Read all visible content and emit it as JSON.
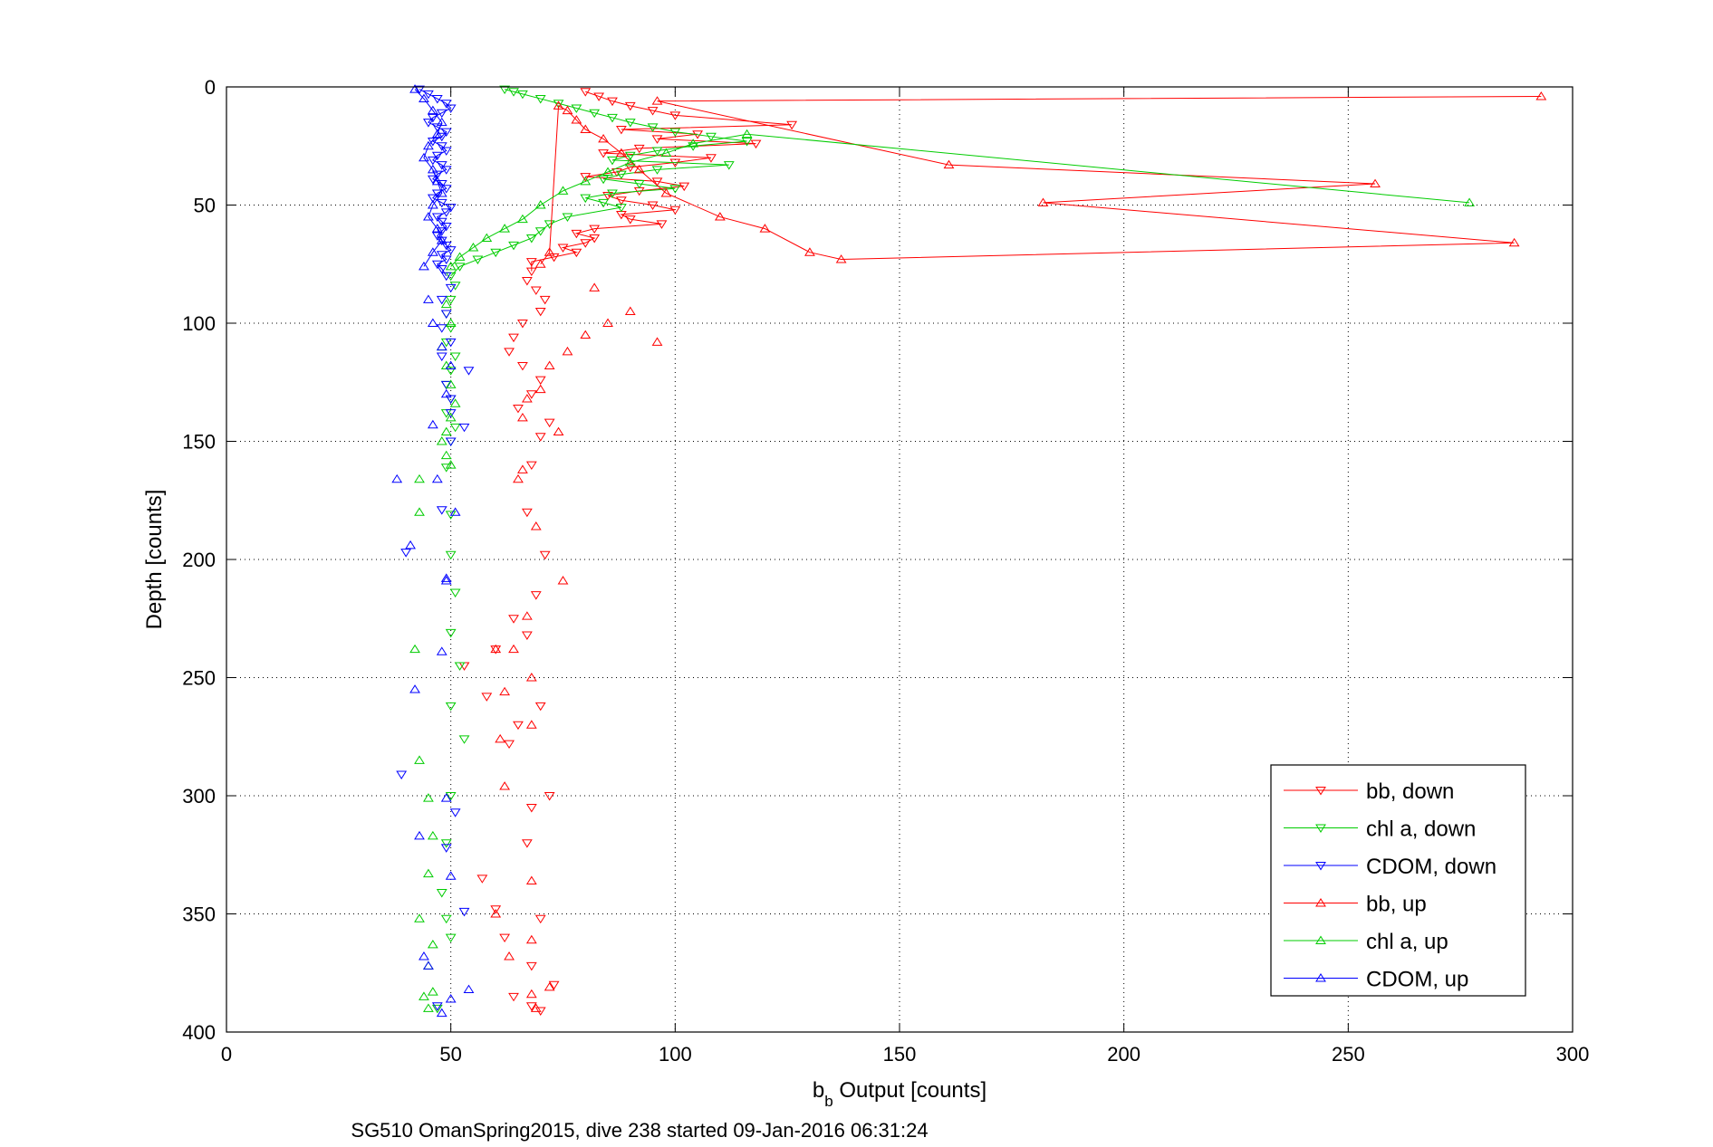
{
  "chart_data": {
    "type": "scatter",
    "title": "",
    "xlabel_main": "b",
    "xlabel_sub": "b",
    "xlabel_rest": " Output [counts]",
    "ylabel": "Depth [counts]",
    "caption": "SG510 OmanSpring2015, dive 238 started 09-Jan-2016 06:31:24",
    "xlim": [
      0,
      300
    ],
    "ylim": [
      0,
      400
    ],
    "y_reversed": true,
    "grid": true,
    "grid_style": "dotted",
    "legend_position": "lower-right",
    "x_ticks": [
      0,
      50,
      100,
      150,
      200,
      250,
      300
    ],
    "x_tick_labels": [
      "0",
      "50",
      "100",
      "150",
      "200",
      "250",
      "300"
    ],
    "y_ticks": [
      0,
      50,
      100,
      150,
      200,
      250,
      300,
      350,
      400
    ],
    "y_tick_labels": [
      "0",
      "50",
      "100",
      "150",
      "200",
      "250",
      "300",
      "350",
      "400"
    ],
    "series": [
      {
        "name": "bb, down",
        "color": "#ff0000",
        "marker": "triangle-down",
        "x": [
          80,
          83,
          86,
          90,
          95,
          100,
          126,
          88,
          105,
          96,
          118,
          92,
          84,
          108,
          100,
          90,
          87,
          80,
          96,
          102,
          92,
          85,
          88,
          95,
          100,
          88,
          90,
          97,
          82,
          78,
          82,
          80,
          75,
          78,
          73,
          68,
          68,
          67,
          69,
          71,
          70,
          66,
          64,
          63,
          66,
          70,
          68,
          65,
          72,
          70,
          68,
          67,
          71,
          69,
          64,
          67,
          60,
          53,
          58,
          70,
          65,
          63,
          72,
          68,
          67,
          57,
          60,
          70,
          62,
          68,
          73,
          64,
          68,
          70
        ],
        "y": [
          2,
          4,
          6,
          8,
          10,
          12,
          16,
          18,
          20,
          22,
          24,
          26,
          28,
          30,
          32,
          34,
          36,
          38,
          40,
          42,
          44,
          46,
          48,
          50,
          52,
          54,
          56,
          58,
          60,
          62,
          64,
          66,
          68,
          70,
          72,
          74,
          78,
          82,
          86,
          90,
          95,
          100,
          106,
          112,
          118,
          124,
          130,
          136,
          142,
          148,
          160,
          180,
          198,
          215,
          225,
          232,
          238,
          245,
          258,
          262,
          270,
          278,
          300,
          305,
          320,
          335,
          348,
          352,
          360,
          372,
          380,
          385,
          389,
          391
        ],
        "connect_to": 78
      },
      {
        "name": "chl a, down",
        "color": "#00cc00",
        "marker": "triangle-down",
        "x": [
          62,
          64,
          66,
          70,
          74,
          78,
          82,
          86,
          90,
          95,
          100,
          108,
          116,
          104,
          96,
          90,
          86,
          112,
          96,
          88,
          84,
          92,
          100,
          86,
          80,
          84,
          88,
          76,
          72,
          70,
          68,
          64,
          60,
          56,
          52,
          50,
          51,
          50,
          49,
          50,
          49,
          51,
          50,
          49,
          50,
          49,
          51,
          50,
          49,
          50,
          50,
          51,
          50,
          52,
          50,
          53,
          50,
          49,
          48,
          49,
          50,
          47
        ],
        "y": [
          1,
          2,
          3,
          5,
          7,
          9,
          11,
          13,
          15,
          17,
          19,
          21,
          23,
          25,
          27,
          29,
          31,
          33,
          35,
          37,
          39,
          41,
          43,
          45,
          47,
          49,
          51,
          55,
          58,
          61,
          64,
          67,
          70,
          73,
          76,
          80,
          84,
          90,
          96,
          102,
          108,
          114,
          120,
          126,
          132,
          138,
          144,
          150,
          161,
          181,
          198,
          214,
          231,
          245,
          262,
          276,
          300,
          320,
          341,
          352,
          360,
          390
        ],
        "connect_to": 80
      },
      {
        "name": "CDOM, down",
        "color": "#0000ff",
        "marker": "triangle-down",
        "x": [
          43,
          45,
          47,
          49,
          50,
          48,
          46,
          45,
          47,
          49,
          48,
          46,
          48,
          49,
          47,
          46,
          48,
          49,
          47,
          46,
          48,
          49,
          47,
          46,
          48,
          50,
          49,
          47,
          48,
          49,
          48,
          47,
          48,
          49,
          50,
          48,
          49,
          47,
          48,
          49,
          50,
          48,
          49,
          48,
          50,
          48,
          54,
          49,
          50,
          50,
          53,
          50,
          48,
          40,
          39,
          51,
          49,
          53,
          47
        ],
        "y": [
          1,
          3,
          5,
          7,
          9,
          11,
          13,
          15,
          17,
          19,
          21,
          23,
          25,
          27,
          29,
          31,
          33,
          35,
          37,
          39,
          41,
          43,
          45,
          47,
          49,
          51,
          53,
          55,
          57,
          59,
          61,
          63,
          65,
          67,
          69,
          71,
          73,
          75,
          77,
          80,
          85,
          90,
          96,
          102,
          108,
          114,
          120,
          126,
          132,
          138,
          144,
          150,
          179,
          197,
          291,
          307,
          322,
          349,
          389
        ],
        "connect_to": 80
      },
      {
        "name": "bb, up",
        "color": "#ff0000",
        "marker": "triangle-up",
        "x": [
          293,
          96,
          161,
          256,
          182,
          287,
          137,
          130,
          120,
          110,
          98,
          92,
          88,
          84,
          80,
          78,
          76,
          74,
          72,
          70,
          82,
          90,
          85,
          80,
          96,
          76,
          72,
          70,
          67,
          66,
          74,
          65,
          66,
          69,
          75,
          67,
          60,
          64,
          62,
          68,
          68,
          61,
          68,
          60,
          68,
          63,
          72,
          68,
          69,
          62
        ],
        "y": [
          4,
          6,
          33,
          41,
          49,
          66,
          73,
          70,
          60,
          55,
          45,
          35,
          28,
          22,
          18,
          14,
          10,
          8,
          70,
          75,
          85,
          95,
          100,
          105,
          108,
          112,
          118,
          128,
          132,
          140,
          146,
          166,
          162,
          186,
          209,
          224,
          238,
          238,
          256,
          270,
          250,
          276,
          361,
          350,
          336,
          368,
          381,
          384,
          390,
          296
        ],
        "connect_to": 80
      },
      {
        "name": "chl a, up",
        "color": "#00cc00",
        "marker": "triangle-up",
        "x": [
          277,
          116,
          104,
          98,
          90,
          85,
          80,
          75,
          70,
          66,
          62,
          58,
          55,
          52,
          50,
          49,
          50,
          48,
          49,
          50,
          51,
          50,
          49,
          48,
          49,
          50,
          43,
          43,
          42,
          43,
          45,
          46,
          45,
          43,
          46,
          45,
          46,
          44,
          45
        ],
        "y": [
          49,
          20,
          24,
          28,
          32,
          36,
          40,
          44,
          50,
          56,
          60,
          64,
          68,
          72,
          76,
          92,
          100,
          110,
          118,
          126,
          134,
          140,
          146,
          150,
          156,
          160,
          166,
          180,
          238,
          285,
          301,
          317,
          333,
          352,
          363,
          372,
          383,
          385,
          390
        ],
        "connect_to": 80
      },
      {
        "name": "CDOM, up",
        "color": "#0000ff",
        "marker": "triangle-up",
        "x": [
          42,
          44,
          46,
          48,
          47,
          45,
          44,
          46,
          47,
          48,
          46,
          45,
          47,
          48,
          46,
          44,
          45,
          46,
          48,
          50,
          49,
          46,
          47,
          51,
          49,
          38,
          41,
          49,
          42,
          48,
          43,
          50,
          54,
          50,
          44,
          45,
          48,
          49
        ],
        "y": [
          1,
          5,
          10,
          15,
          20,
          25,
          30,
          35,
          40,
          45,
          50,
          55,
          60,
          65,
          70,
          76,
          90,
          100,
          110,
          118,
          130,
          143,
          166,
          180,
          208,
          166,
          194,
          209,
          255,
          239,
          317,
          334,
          382,
          386,
          368,
          372,
          392,
          301
        ],
        "connect_to": 80
      }
    ]
  }
}
